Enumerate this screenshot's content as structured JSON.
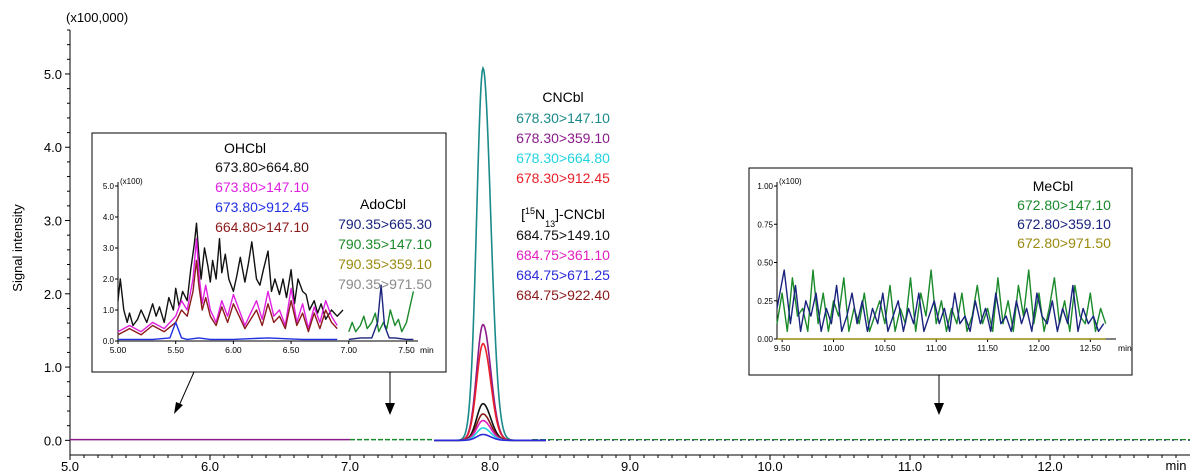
{
  "chart_data": {
    "type": "line",
    "multiplier_label": "(x100,000)",
    "ylabel": "Signal intensity",
    "xunit": "min",
    "xlim": [
      5.0,
      13.0
    ],
    "ylim": [
      -0.2,
      5.6
    ],
    "x_ticks": [
      "5.0",
      "6.0",
      "7.0",
      "8.0",
      "9.0",
      "10.0",
      "11.0",
      "12.0"
    ],
    "y_ticks": [
      "0.0",
      "1.0",
      "2.0",
      "3.0",
      "4.0",
      "5.0"
    ],
    "peak_rt": 7.95,
    "main_series": [
      {
        "transition": "678.30>147.10",
        "color": "#1a8a8a",
        "apex": 5.08
      },
      {
        "transition": "678.30>359.10",
        "color": "#8b1a8b",
        "apex": 1.58
      },
      {
        "transition": "678.30>912.45",
        "color": "#e8202a",
        "apex": 1.32
      },
      {
        "transition": "684.75>149.10",
        "color": "#111111",
        "apex": 0.5
      },
      {
        "transition": "684.75>922.40",
        "color": "#8b1a1a",
        "apex": 0.36
      },
      {
        "transition": "684.75>361.10",
        "color": "#e020c0",
        "apex": 0.27
      },
      {
        "transition": "678.30>664.80",
        "color": "#22d3e0",
        "apex": 0.17
      },
      {
        "transition": "684.75>671.25",
        "color": "#2a2ad8",
        "apex": 0.08
      }
    ],
    "main_labels": {
      "group1_title": "CNCbl",
      "group1": [
        {
          "text": "678.30>147.10",
          "color": "#1a8a8a"
        },
        {
          "text": "678.30>359.10",
          "color": "#8b1a8b"
        },
        {
          "text": "678.30>664.80",
          "color": "#22d3e0"
        },
        {
          "text": "678.30>912.45",
          "color": "#e8202a"
        }
      ],
      "group2_title_sup": "15",
      "group2_title_n": "N",
      "group2_title_sub": "13",
      "group2_title_rest": "]-CNCbl",
      "group2_title_open": "[",
      "group2": [
        {
          "text": "684.75>149.10",
          "color": "#111111"
        },
        {
          "text": "684.75>361.10",
          "color": "#e020c0"
        },
        {
          "text": "684.75>671.25",
          "color": "#2a2ad8"
        },
        {
          "text": "684.75>922.40",
          "color": "#8b1a1a"
        }
      ]
    },
    "inset_left": {
      "multiplier_label": "(x100)",
      "xlim": [
        5.0,
        7.6
      ],
      "ylim": [
        0.0,
        5.0
      ],
      "x_ticks": [
        "5.00",
        "5.50",
        "6.00",
        "6.50",
        "7.00",
        "7.50"
      ],
      "y_ticks": [
        "0.0",
        "1.0",
        "2.0",
        "3.0",
        "4.0",
        "5.0"
      ],
      "xunit": "min",
      "ohcbl_title": "OHCbl",
      "ohcbl": [
        {
          "text": "673.80>664.80",
          "color": "#111111"
        },
        {
          "text": "673.80>147.10",
          "color": "#e020e0"
        },
        {
          "text": "673.80>912.45",
          "color": "#2030e0"
        },
        {
          "text": "664.80>147.10",
          "color": "#8b1a1a"
        }
      ],
      "adocbl_title": "AdoCbl",
      "adocbl": [
        {
          "text": "790.35>665.30",
          "color": "#1a237e"
        },
        {
          "text": "790.35>147.10",
          "color": "#1a8a2a"
        },
        {
          "text": "790.35>359.10",
          "color": "#9a8a10"
        },
        {
          "text": "790.35>971.50",
          "color": "#8a8a8a"
        }
      ],
      "series": [
        {
          "name": "673.80>664.80",
          "color": "#111111",
          "x": [
            5.0,
            5.02,
            5.05,
            5.08,
            5.1,
            5.13,
            5.17,
            5.2,
            5.25,
            5.3,
            5.33,
            5.36,
            5.4,
            5.44,
            5.48,
            5.5,
            5.53,
            5.56,
            5.6,
            5.63,
            5.66,
            5.68,
            5.7,
            5.72,
            5.75,
            5.78,
            5.8,
            5.82,
            5.85,
            5.88,
            5.9,
            5.93,
            5.96,
            6.0,
            6.03,
            6.06,
            6.1,
            6.13,
            6.16,
            6.2,
            6.23,
            6.26,
            6.3,
            6.33,
            6.36,
            6.4,
            6.43,
            6.46,
            6.5,
            6.53,
            6.56,
            6.6,
            6.63,
            6.66,
            6.7,
            6.73,
            6.76,
            6.8,
            6.85,
            6.9,
            6.95
          ],
          "y": [
            1.3,
            2.0,
            1.0,
            0.6,
            0.9,
            0.5,
            0.7,
            1.0,
            0.6,
            1.2,
            0.8,
            1.1,
            0.6,
            1.4,
            1.0,
            1.7,
            1.1,
            1.6,
            1.3,
            2.3,
            3.1,
            3.8,
            2.8,
            2.0,
            3.0,
            2.4,
            1.9,
            2.6,
            2.0,
            3.3,
            2.2,
            2.8,
            2.0,
            1.6,
            2.1,
            2.7,
            1.9,
            2.5,
            3.2,
            2.0,
            1.8,
            2.3,
            2.9,
            1.6,
            2.0,
            1.5,
            2.0,
            1.4,
            2.3,
            1.2,
            2.0,
            1.6,
            1.5,
            1.0,
            1.3,
            0.9,
            1.2,
            0.7,
            1.0,
            0.8,
            1.0
          ]
        },
        {
          "name": "673.80>147.10",
          "color": "#e020e0",
          "x": [
            5.0,
            5.1,
            5.2,
            5.3,
            5.4,
            5.5,
            5.55,
            5.6,
            5.65,
            5.68,
            5.7,
            5.73,
            5.76,
            5.8,
            5.85,
            5.9,
            5.95,
            6.0,
            6.05,
            6.1,
            6.15,
            6.2,
            6.25,
            6.3,
            6.35,
            6.4,
            6.45,
            6.5,
            6.55,
            6.6,
            6.65,
            6.7,
            6.75,
            6.8,
            6.85,
            6.9
          ],
          "y": [
            0.3,
            0.5,
            0.3,
            0.6,
            0.4,
            0.8,
            1.3,
            1.0,
            2.0,
            3.3,
            2.2,
            1.2,
            1.8,
            1.0,
            0.6,
            1.3,
            0.8,
            1.5,
            1.0,
            0.5,
            0.9,
            1.3,
            0.7,
            1.6,
            0.8,
            1.0,
            0.5,
            1.7,
            0.6,
            1.2,
            0.4,
            1.1,
            0.6,
            1.3,
            0.8,
            0.5
          ]
        },
        {
          "name": "664.80>147.10",
          "color": "#8b1a1a",
          "x": [
            5.0,
            5.1,
            5.2,
            5.3,
            5.4,
            5.5,
            5.55,
            5.6,
            5.65,
            5.68,
            5.7,
            5.73,
            5.76,
            5.8,
            5.85,
            5.9,
            5.95,
            6.0,
            6.05,
            6.1,
            6.15,
            6.2,
            6.25,
            6.3,
            6.35,
            6.4,
            6.45,
            6.5,
            6.55,
            6.6,
            6.65,
            6.7,
            6.75,
            6.8,
            6.85,
            6.9
          ],
          "y": [
            0.2,
            0.4,
            0.2,
            0.5,
            0.3,
            0.6,
            1.0,
            0.8,
            1.6,
            2.6,
            1.8,
            1.0,
            1.4,
            0.8,
            0.5,
            1.1,
            0.6,
            1.2,
            0.8,
            0.4,
            0.7,
            1.0,
            0.5,
            1.2,
            0.6,
            0.8,
            0.4,
            1.3,
            0.5,
            0.9,
            0.3,
            0.9,
            0.4,
            1.0,
            0.6,
            0.4
          ]
        },
        {
          "name": "673.80>912.45",
          "color": "#2030e0",
          "x": [
            5.0,
            5.3,
            5.45,
            5.5,
            5.55,
            5.6,
            5.7,
            5.8,
            6.0,
            6.3,
            6.6,
            6.9
          ],
          "y": [
            0.05,
            0.05,
            0.1,
            0.6,
            0.1,
            0.05,
            0.1,
            0.05,
            0.05,
            0.1,
            0.05,
            0.05
          ]
        },
        {
          "name": "790.35>147.10",
          "color": "#1a8a2a",
          "x": [
            7.0,
            7.03,
            7.06,
            7.1,
            7.13,
            7.16,
            7.2,
            7.23,
            7.26,
            7.3,
            7.33,
            7.36,
            7.4,
            7.43,
            7.46,
            7.5,
            7.53,
            7.56
          ],
          "y": [
            0.3,
            0.6,
            0.3,
            0.5,
            0.8,
            0.4,
            0.6,
            0.9,
            0.3,
            0.6,
            0.4,
            1.0,
            0.5,
            0.7,
            0.3,
            0.6,
            1.1,
            1.6
          ]
        },
        {
          "name": "790.35>665.30",
          "color": "#1a237e",
          "x": [
            7.0,
            7.1,
            7.2,
            7.25,
            7.28,
            7.31,
            7.35,
            7.4,
            7.5,
            7.56
          ],
          "y": [
            0.05,
            0.1,
            0.1,
            0.6,
            1.8,
            0.5,
            0.1,
            0.1,
            0.05,
            0.05
          ]
        }
      ]
    },
    "inset_right": {
      "multiplier_label": "(x100)",
      "xlim": [
        9.45,
        12.75
      ],
      "ylim": [
        0.0,
        1.0
      ],
      "x_ticks": [
        "9.50",
        "10.00",
        "10.50",
        "11.00",
        "11.50",
        "12.00",
        "12.50"
      ],
      "y_ticks": [
        "0.00",
        "0.25",
        "0.50",
        "0.75",
        "1.00"
      ],
      "xunit": "min",
      "title": "MeCbl",
      "labels": [
        {
          "text": "672.80>147.10",
          "color": "#1a8a2a"
        },
        {
          "text": "672.80>359.10",
          "color": "#1a237e"
        },
        {
          "text": "672.80>971.50",
          "color": "#9a8a10"
        }
      ],
      "series": [
        {
          "name": "672.80>147.10",
          "color": "#1a8a2a",
          "x": [
            9.45,
            9.5,
            9.55,
            9.6,
            9.65,
            9.7,
            9.75,
            9.8,
            9.85,
            9.9,
            9.95,
            10.0,
            10.05,
            10.1,
            10.15,
            10.2,
            10.25,
            10.3,
            10.35,
            10.4,
            10.45,
            10.5,
            10.55,
            10.6,
            10.65,
            10.7,
            10.75,
            10.8,
            10.85,
            10.9,
            10.95,
            11.0,
            11.05,
            11.1,
            11.15,
            11.2,
            11.25,
            11.3,
            11.35,
            11.4,
            11.45,
            11.5,
            11.55,
            11.6,
            11.65,
            11.7,
            11.75,
            11.8,
            11.85,
            11.9,
            11.95,
            12.0,
            12.05,
            12.1,
            12.15,
            12.2,
            12.25,
            12.3,
            12.35,
            12.4,
            12.45,
            12.5,
            12.55,
            12.6,
            12.65
          ],
          "y": [
            0.1,
            0.3,
            0.05,
            0.4,
            0.15,
            0.2,
            0.05,
            0.45,
            0.1,
            0.3,
            0.05,
            0.25,
            0.15,
            0.4,
            0.05,
            0.2,
            0.1,
            0.3,
            0.05,
            0.15,
            0.25,
            0.1,
            0.35,
            0.05,
            0.2,
            0.1,
            0.4,
            0.05,
            0.3,
            0.15,
            0.45,
            0.1,
            0.25,
            0.05,
            0.2,
            0.1,
            0.3,
            0.05,
            0.15,
            0.35,
            0.1,
            0.2,
            0.05,
            0.4,
            0.1,
            0.25,
            0.05,
            0.35,
            0.15,
            0.45,
            0.1,
            0.3,
            0.05,
            0.2,
            0.4,
            0.1,
            0.25,
            0.05,
            0.35,
            0.15,
            0.1,
            0.3,
            0.05,
            0.2,
            0.1
          ]
        },
        {
          "name": "672.80>359.10",
          "color": "#1a237e",
          "x": [
            9.45,
            9.52,
            9.58,
            9.63,
            9.68,
            9.73,
            9.78,
            9.83,
            9.88,
            9.93,
            9.98,
            10.03,
            10.08,
            10.13,
            10.18,
            10.23,
            10.28,
            10.33,
            10.38,
            10.43,
            10.48,
            10.53,
            10.58,
            10.63,
            10.68,
            10.73,
            10.78,
            10.83,
            10.88,
            10.93,
            10.98,
            11.03,
            11.08,
            11.13,
            11.18,
            11.23,
            11.28,
            11.33,
            11.38,
            11.43,
            11.48,
            11.53,
            11.58,
            11.63,
            11.68,
            11.73,
            11.78,
            11.83,
            11.88,
            11.93,
            11.98,
            12.03,
            12.08,
            12.13,
            12.18,
            12.23,
            12.28,
            12.33,
            12.38,
            12.43,
            12.48,
            12.53,
            12.58,
            12.63
          ],
          "y": [
            0.2,
            0.45,
            0.1,
            0.35,
            0.05,
            0.25,
            0.15,
            0.3,
            0.05,
            0.2,
            0.1,
            0.35,
            0.05,
            0.15,
            0.3,
            0.1,
            0.25,
            0.05,
            0.2,
            0.1,
            0.3,
            0.05,
            0.15,
            0.25,
            0.05,
            0.2,
            0.1,
            0.3,
            0.05,
            0.15,
            0.25,
            0.1,
            0.2,
            0.05,
            0.3,
            0.1,
            0.15,
            0.05,
            0.25,
            0.1,
            0.2,
            0.05,
            0.3,
            0.1,
            0.15,
            0.05,
            0.25,
            0.1,
            0.2,
            0.05,
            0.3,
            0.15,
            0.1,
            0.25,
            0.05,
            0.2,
            0.1,
            0.35,
            0.05,
            0.2,
            0.1,
            0.15,
            0.05,
            0.1
          ]
        },
        {
          "name": "672.80>971.50",
          "color": "#9a8a10",
          "x": [
            9.45,
            12.65
          ],
          "y": [
            0.0,
            0.0
          ]
        }
      ]
    }
  }
}
